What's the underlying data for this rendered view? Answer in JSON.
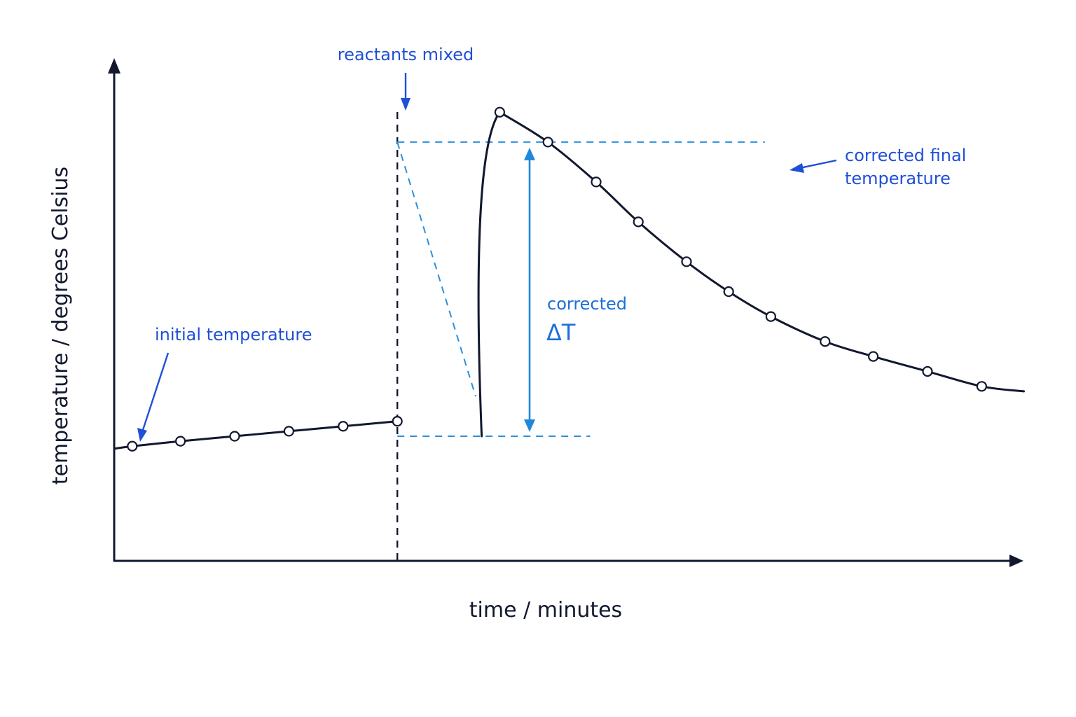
{
  "chart_data": {
    "type": "line",
    "title": "",
    "xlabel": "time / minutes",
    "ylabel": "temperature / degrees Celsius",
    "xlim": [
      0,
      15
    ],
    "ylim": [
      0,
      10
    ],
    "grid": false,
    "ticks_shown": false,
    "series": [
      {
        "role": "before mixing",
        "points": [
          {
            "x": 0.3,
            "y": 2.3
          },
          {
            "x": 1.1,
            "y": 2.4
          },
          {
            "x": 2.0,
            "y": 2.5
          },
          {
            "x": 2.9,
            "y": 2.6
          },
          {
            "x": 3.8,
            "y": 2.7
          },
          {
            "x": 4.7,
            "y": 2.8
          }
        ],
        "line_start": {
          "x": 0.0,
          "y": 2.25
        },
        "line_end": {
          "x": 4.7,
          "y": 2.8
        }
      },
      {
        "role": "after mixing",
        "rise_start": {
          "x": 6.1,
          "y": 2.5
        },
        "points": [
          {
            "x": 6.4,
            "y": 9.0
          },
          {
            "x": 7.2,
            "y": 8.4
          },
          {
            "x": 8.0,
            "y": 7.6
          },
          {
            "x": 8.7,
            "y": 6.8
          },
          {
            "x": 9.5,
            "y": 6.0
          },
          {
            "x": 10.2,
            "y": 5.4
          },
          {
            "x": 10.9,
            "y": 4.9
          },
          {
            "x": 11.8,
            "y": 4.4
          },
          {
            "x": 12.6,
            "y": 4.1
          },
          {
            "x": 13.5,
            "y": 3.8
          },
          {
            "x": 14.4,
            "y": 3.5
          }
        ],
        "line_end": {
          "x": 15.1,
          "y": 3.4
        }
      }
    ],
    "reference_lines": {
      "mixing_time": 4.7,
      "corrected_final_temperature": 8.4,
      "corrected_initial_temperature": 2.5,
      "extrapolation": {
        "from": {
          "x": 4.7,
          "y": 8.4
        },
        "to": {
          "x": 6.0,
          "y": 3.3
        }
      }
    },
    "annotations": {
      "mixed": "reactants mixed",
      "initial": "initial temperature",
      "final_line1": "corrected final",
      "final_line2": "temperature",
      "delta_line1": "corrected",
      "delta_line2": "ΔT"
    }
  }
}
